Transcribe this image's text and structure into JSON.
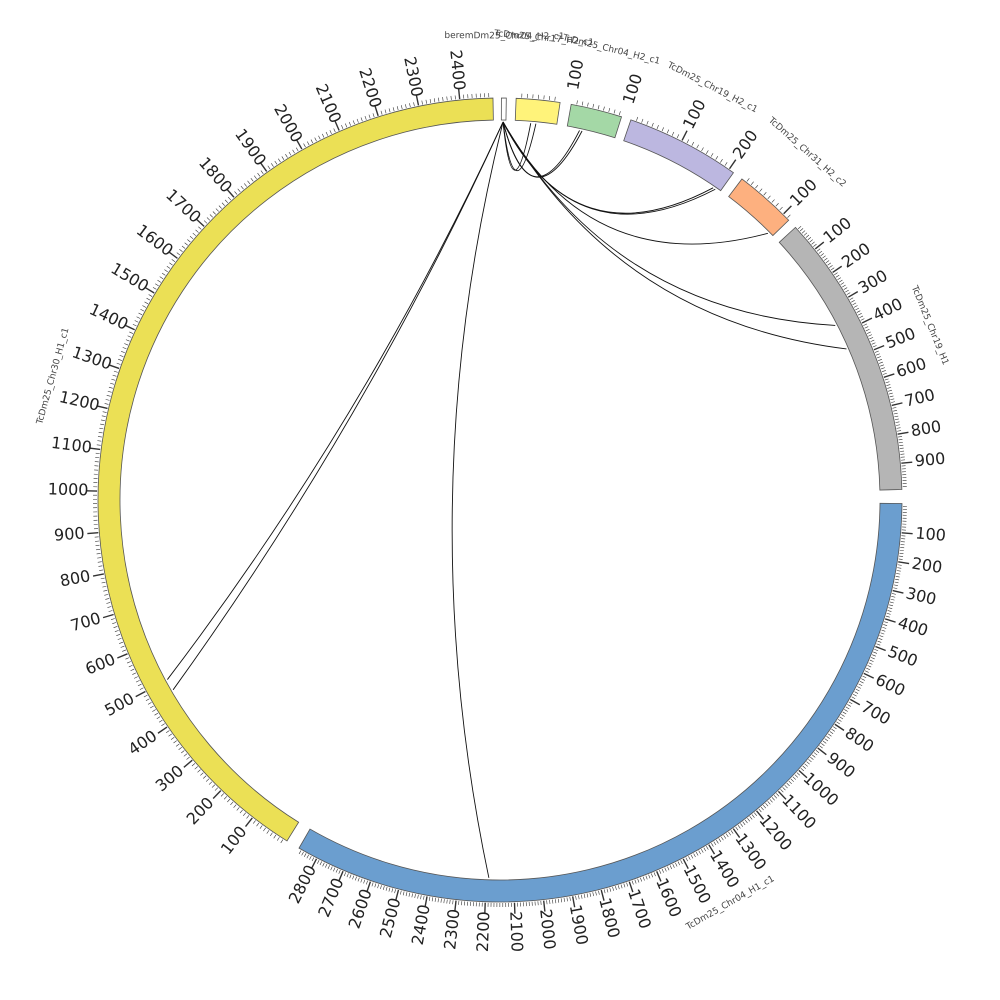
{
  "chromosomes": [
    {
      "id": "bez",
      "label": "beremDm25_Chr04_H2_c1",
      "length": 8,
      "color": "#ffffff",
      "labels": []
    },
    {
      "id": "c17",
      "label": "TcDm25_Chr17_H2_c1",
      "length": 80,
      "color": "#fff37a",
      "labels": [
        "100"
      ]
    },
    {
      "id": "c04h2",
      "label": "TcDm25_Chr04_H2_c1",
      "length": 95,
      "color": "#a4d8a6",
      "labels": [
        "100"
      ]
    },
    {
      "id": "c19h2",
      "label": "TcDm25_Chr19_H2_c1",
      "length": 210,
      "color": "#bcb7e0",
      "labels": [
        "100",
        "200"
      ]
    },
    {
      "id": "c31h2",
      "label": "TcDm25_Chr31_H2_c2",
      "length": 115,
      "color": "#fdb07f",
      "labels": [
        "100"
      ]
    },
    {
      "id": "c19h1",
      "label": "TcDm25_Chr19_H1",
      "length": 990,
      "color": "#b5b5b5",
      "labels": [
        "100",
        "200",
        "300",
        "400",
        "500",
        "600",
        "700",
        "800",
        "900"
      ]
    },
    {
      "id": "c04h1",
      "label": "TcDm25_Chr04_H1_c1",
      "length": 2870,
      "color": "#6b9ecf",
      "labels": [
        "100",
        "200",
        "300",
        "400",
        "500",
        "600",
        "700",
        "800",
        "900",
        "1000",
        "1100",
        "1200",
        "1300",
        "1400",
        "1500",
        "1600",
        "1700",
        "1800",
        "1900",
        "2000",
        "2100",
        "2200",
        "2300",
        "2400",
        "2500",
        "2600",
        "2700",
        "2800"
      ]
    },
    {
      "id": "c30h1",
      "label": "TcDm25_Chr30_H1_c1",
      "length": 2480,
      "color": "#ebe055",
      "labels": [
        "100",
        "200",
        "300",
        "400",
        "500",
        "600",
        "700",
        "800",
        "900",
        "1000",
        "1100",
        "1200",
        "1300",
        "1400",
        "1500",
        "1600",
        "1700",
        "1800",
        "1900",
        "2000",
        "2100",
        "2200",
        "2300",
        "2400"
      ]
    }
  ],
  "links": [
    {
      "from": "bez",
      "from_pos": 3,
      "to": "c17",
      "to_pos": 30
    },
    {
      "from": "bez",
      "from_pos": 3,
      "to": "c17",
      "to_pos": 40
    },
    {
      "from": "bez",
      "from_pos": 3,
      "to": "c04h2",
      "to_pos": 25
    },
    {
      "from": "bez",
      "from_pos": 3,
      "to": "c04h2",
      "to_pos": 30
    },
    {
      "from": "bez",
      "from_pos": 3,
      "to": "c19h2",
      "to_pos": 195
    },
    {
      "from": "bez",
      "from_pos": 3,
      "to": "c19h2",
      "to_pos": 200
    },
    {
      "from": "bez",
      "from_pos": 3,
      "to": "c31h2",
      "to_pos": 105
    },
    {
      "from": "bez",
      "from_pos": 3,
      "to": "c19h1",
      "to_pos": 365
    },
    {
      "from": "bez",
      "from_pos": 3,
      "to": "c19h1",
      "to_pos": 460
    },
    {
      "from": "bez",
      "from_pos": 3,
      "to": "c30h1",
      "to_pos": 500
    },
    {
      "from": "bez",
      "from_pos": 3,
      "to": "c30h1",
      "to_pos": 470
    },
    {
      "from": "bez",
      "from_pos": 3,
      "to": "c04h1",
      "to_pos": 2190
    }
  ]
}
